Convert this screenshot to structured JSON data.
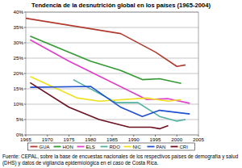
{
  "chart_data": {
    "type": "line",
    "title": "Tendencia de la desnutrición global en los países (1965-2004)",
    "annotations": [
      "Fuente: CEPAL, sobre la base de encuestas nacionales de los respectivos países de demografía y salud (DHS) y datos de vigilancia epidemiológica en el caso de Costa Rica."
    ],
    "xlim": [
      1965,
      2005
    ],
    "xticks": [
      1965,
      1970,
      1975,
      1980,
      1985,
      1990,
      1995,
      2000,
      2005
    ],
    "ylim": [
      0,
      40
    ],
    "yticks": [
      {
        "value": 0,
        "label": "0%"
      },
      {
        "value": 5,
        "label": "5%"
      },
      {
        "value": 10,
        "label": "10%"
      },
      {
        "value": 15,
        "label": "15%"
      },
      {
        "value": 20,
        "label": "20%"
      },
      {
        "value": 25,
        "label": "25%"
      },
      {
        "value": 30,
        "label": "30%"
      },
      {
        "value": 35,
        "label": "35%"
      },
      {
        "value": 40,
        "label": "40%"
      }
    ],
    "grid": true,
    "legend": "bottom",
    "series": [
      {
        "name": "GUA",
        "color": "#b03a2e",
        "x": [
          1965,
          1987,
          1995,
          2000,
          2002
        ],
        "values": [
          38,
          33,
          27,
          22.3,
          22.8
        ]
      },
      {
        "name": "HON",
        "color": "#339933",
        "x": [
          1966,
          1980,
          1987,
          1992,
          1996,
          2001
        ],
        "values": [
          32.2,
          24,
          21,
          18,
          18.3,
          16.8
        ]
      },
      {
        "name": "ELS",
        "color": "#e040c8",
        "x": [
          1966,
          1975,
          1988,
          1993,
          1998,
          2003
        ],
        "values": [
          31,
          24,
          15,
          11.5,
          11.8,
          10.3
        ]
      },
      {
        "name": "RDO",
        "color": "#4fb0a0",
        "x": [
          1976,
          1986,
          1991,
          1996,
          2000,
          2002
        ],
        "values": [
          18,
          10.5,
          10.5,
          6,
          4.5,
          5
        ]
      },
      {
        "name": "NIC",
        "color": "#f0e020",
        "x": [
          1966,
          1977,
          1982,
          1993,
          1998,
          2001
        ],
        "values": [
          19,
          12,
          11,
          12,
          11,
          11.5
        ]
      },
      {
        "name": "PAN",
        "color": "#2050d0",
        "x": [
          1966,
          1980,
          1987,
          1992,
          1996,
          2003
        ],
        "values": [
          15.5,
          15.8,
          9,
          6,
          8,
          6.8
        ]
      },
      {
        "name": "CRI",
        "color": "#6a1020",
        "x": [
          1966,
          1975,
          1982,
          1989,
          1994,
          1996,
          1998
        ],
        "values": [
          17,
          9,
          5,
          2.5,
          2.5,
          2,
          3
        ]
      }
    ]
  }
}
